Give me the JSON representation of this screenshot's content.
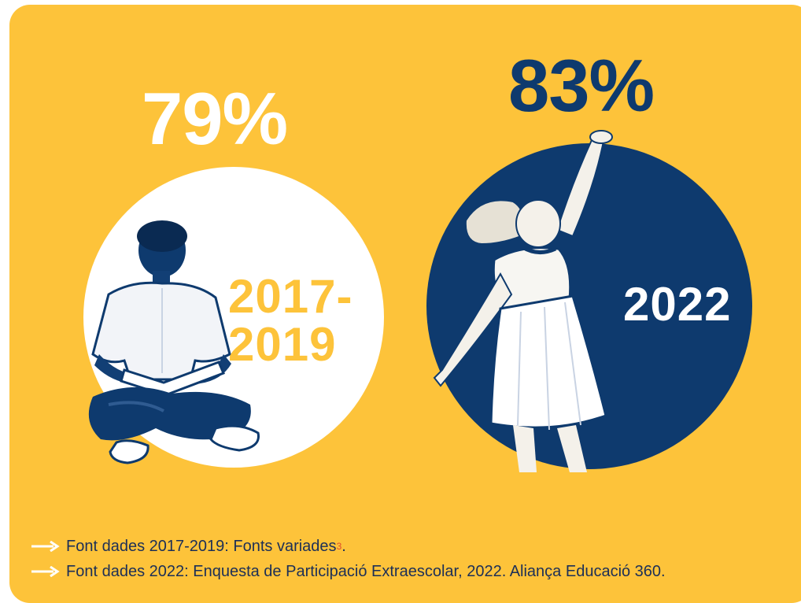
{
  "colors": {
    "background": "#fdc33a",
    "navy": "#0e3a6e",
    "white": "#ffffff",
    "footnote_marker": "#e04a2b"
  },
  "left": {
    "percent": "79%",
    "year_line1": "2017-",
    "year_line2": "2019",
    "figure": "boy-reading-book"
  },
  "right": {
    "percent": "83%",
    "year": "2022",
    "figure": "girl-jumping"
  },
  "notes": [
    {
      "icon": "arrow-right-icon",
      "text": "Font dades 2017-2019: Fonts variades",
      "footnote": "3",
      "suffix": "."
    },
    {
      "icon": "arrow-right-icon",
      "text": "Font dades 2022: Enquesta de Participació Extraescolar, 2022. Aliança Educació 360."
    }
  ]
}
